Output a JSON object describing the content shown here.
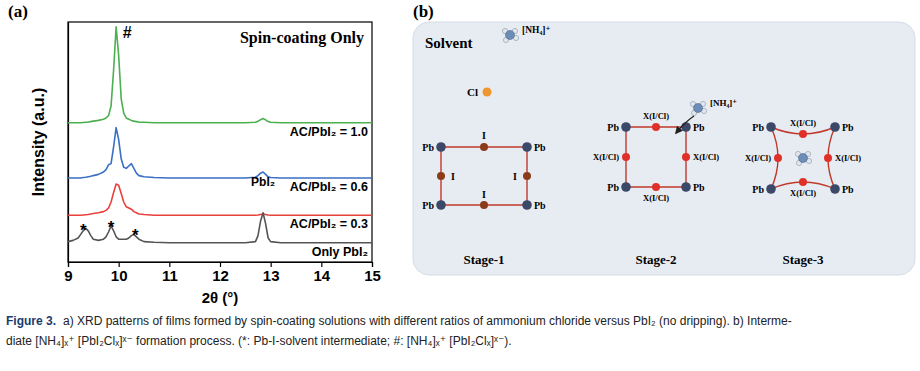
{
  "panel_labels": [
    "(a)",
    "(b)"
  ],
  "chart_data": {
    "type": "line",
    "title": "Spin-coating Only",
    "x_label": "2θ (°)",
    "y_label": "Intensity (a.u.)",
    "x": [
      9,
      9.1,
      9.2,
      9.25,
      9.3,
      9.35,
      9.4,
      9.45,
      9.5,
      9.6,
      9.7,
      9.75,
      9.8,
      9.85,
      9.9,
      9.95,
      10,
      10.05,
      10.1,
      10.15,
      10.2,
      10.25,
      10.3,
      10.35,
      10.4,
      10.5,
      10.7,
      11,
      11.5,
      12,
      12.5,
      12.7,
      12.75,
      12.8,
      12.85,
      12.9,
      12.95,
      13,
      13.2,
      13.5,
      14,
      14.5,
      15
    ],
    "series": [
      {
        "name": "AC/PbI₂ = 1.0",
        "color": "#4caf50",
        "values": [
          58,
          58,
          58,
          58,
          58.1,
          58.2,
          58.3,
          58.5,
          58.7,
          59,
          59.5,
          60,
          61,
          65,
          80,
          98,
          86,
          68,
          62,
          60,
          59.5,
          59,
          58.7,
          58.5,
          58.3,
          58.2,
          58,
          58,
          58,
          58,
          58,
          58.2,
          58.6,
          59.3,
          59.8,
          59.2,
          58.5,
          58.2,
          58,
          58,
          58,
          58,
          58
        ]
      },
      {
        "name": "AC/PbI₂ = 0.6",
        "color": "#3a6fc4",
        "values": [
          35,
          35,
          35,
          35,
          35.2,
          35.3,
          35.5,
          35.7,
          36,
          36.5,
          37.5,
          38.5,
          40.5,
          41,
          48,
          56,
          51,
          43,
          39.5,
          39,
          40,
          41,
          39,
          37,
          36,
          35.5,
          35.2,
          35,
          35,
          35,
          35,
          35.3,
          36,
          37,
          37.5,
          36.5,
          35.5,
          35.2,
          35,
          35,
          35,
          35,
          35
        ]
      },
      {
        "name": "AC/PbI₂ = 0.3",
        "color": "#e8413c",
        "values": [
          19.5,
          19.5,
          19.5,
          19.5,
          19.6,
          19.7,
          19.8,
          20,
          20.2,
          20.5,
          21,
          21.5,
          22.5,
          25,
          29,
          32.5,
          32,
          28.5,
          25,
          23,
          22.5,
          22,
          21,
          20.5,
          20,
          19.8,
          19.5,
          19.5,
          19.5,
          19.5,
          19.5,
          19.5,
          19.6,
          19.8,
          20,
          19.8,
          19.6,
          19.5,
          19.5,
          19.5,
          19.5,
          19.5,
          19.5
        ]
      },
      {
        "name": "Only PbI₂",
        "color": "#555555",
        "values": [
          8.5,
          9,
          10,
          11.5,
          13,
          14,
          13,
          11,
          9.5,
          9,
          9.5,
          10.5,
          12.5,
          15,
          13,
          10.5,
          9.5,
          9.5,
          9.5,
          9.5,
          10,
          11,
          11.5,
          10.5,
          9.5,
          8.5,
          8.2,
          8,
          8,
          8,
          8,
          8.5,
          11,
          17,
          20.5,
          16,
          10,
          8.5,
          8,
          8,
          8,
          8,
          8
        ]
      }
    ],
    "xlim": [
      9,
      15
    ],
    "xticks": [
      9,
      10,
      11,
      12,
      13,
      14,
      15
    ],
    "ylim": [
      0,
      100
    ],
    "tick_labels": "x",
    "annotations": [
      {
        "text": "#",
        "x": 10.17,
        "y": 95
      },
      {
        "text": "PbI₂",
        "x": 12.85,
        "y": 33
      },
      {
        "text": "*",
        "x": 9.3,
        "y": 12.5
      },
      {
        "text": "*",
        "x": 9.85,
        "y": 14
      },
      {
        "text": "*",
        "x": 10.33,
        "y": 10.5
      }
    ]
  },
  "diagram": {
    "title": "Solvent",
    "species": [
      {
        "label": "[NH₄]⁺"
      },
      {
        "label": "Cl"
      }
    ],
    "stages": [
      {
        "label": "Stage-1",
        "corners": [
          "Pb",
          "Pb",
          "Pb",
          "Pb"
        ],
        "sites": [
          "I",
          "I",
          "I",
          "I"
        ]
      },
      {
        "label": "Stage-2",
        "corners": [
          "Pb",
          "Pb",
          "Pb",
          "Pb"
        ],
        "sites": [
          "X(I/Cl)",
          "X(I/Cl)",
          "X(I/Cl)",
          "X(I/Cl)"
        ],
        "incoming": "[NH₄]⁺"
      },
      {
        "label": "Stage-3",
        "corners": [
          "Pb",
          "Pb",
          "Pb",
          "Pb"
        ],
        "sites": [
          "X(I/Cl)",
          "X(I/Cl)",
          "X(I/Cl)",
          "X(I/Cl)"
        ]
      }
    ]
  },
  "caption": {
    "label": "Figure 3.",
    "lines": [
      "a) XRD patterns of films formed by spin-coating solutions with different ratios of ammonium chloride versus PbI₂ (no dripping). b) Interme-",
      "diate [NH₄]ₓ⁺ [PbI₂Clₓ]ˣ⁻ formation process. (*: Pb-I-solvent intermediate; #: [NH₄]ₓ⁺ [PbI₂Clₓ]ˣ⁻)."
    ]
  }
}
